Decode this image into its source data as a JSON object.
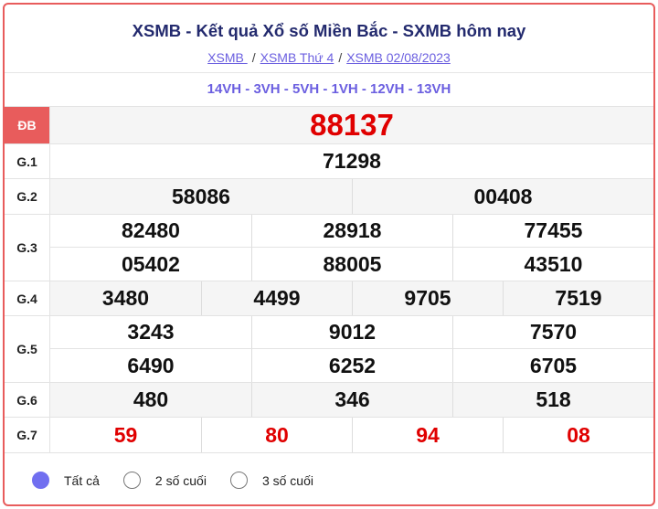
{
  "header": {
    "title": "XSMB - Kết quả Xổ số Miền Bắc - SXMB hôm nay",
    "breadcrumbs": [
      "XSMB ",
      "XSMB Thứ 4",
      "XSMB 02/08/2023"
    ],
    "separator": "/"
  },
  "codes": "14VH - 3VH - 5VH - 1VH - 12VH - 13VH",
  "prizes": {
    "db": {
      "label": "ĐB",
      "values": [
        "88137"
      ]
    },
    "g1": {
      "label": "G.1",
      "values": [
        "71298"
      ]
    },
    "g2": {
      "label": "G.2",
      "values": [
        "58086",
        "00408"
      ]
    },
    "g3": {
      "label": "G.3",
      "values": [
        "82480",
        "28918",
        "77455",
        "05402",
        "88005",
        "43510"
      ]
    },
    "g4": {
      "label": "G.4",
      "values": [
        "3480",
        "4499",
        "9705",
        "7519"
      ]
    },
    "g5": {
      "label": "G.5",
      "values": [
        "3243",
        "9012",
        "7570",
        "6490",
        "6252",
        "6705"
      ]
    },
    "g6": {
      "label": "G.6",
      "values": [
        "480",
        "346",
        "518"
      ]
    },
    "g7": {
      "label": "G.7",
      "values": [
        "59",
        "80",
        "94",
        "08"
      ]
    }
  },
  "filters": [
    {
      "label": "Tất cả",
      "selected": true
    },
    {
      "label": "2 số cuối",
      "selected": false
    },
    {
      "label": "3 số cuối",
      "selected": false
    }
  ],
  "colors": {
    "accent": "#e85c5c",
    "highlight": "#e00000",
    "link": "#6b5fe0",
    "title": "#232a6e"
  }
}
